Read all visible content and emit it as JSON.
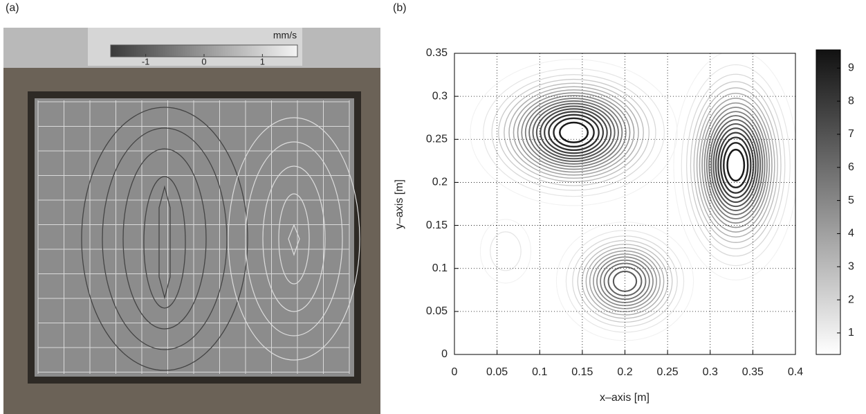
{
  "chart_data": [
    {
      "type": "image",
      "label": "(a)",
      "colorbar": {
        "unit": "mm/s",
        "lim": [
          -1.6,
          1.6
        ],
        "ticks": [
          -1,
          0,
          1
        ]
      }
    },
    {
      "type": "contour",
      "label": "(b)",
      "x_label": "x–axis [m]",
      "y_label": "y–axis [m]",
      "xlim": [
        0,
        0.4
      ],
      "xticks": [
        0,
        0.05,
        0.1,
        0.15,
        0.2,
        0.25,
        0.3,
        0.35,
        0.4
      ],
      "ylim": [
        0,
        0.35
      ],
      "yticks": [
        0,
        0.05,
        0.1,
        0.15,
        0.2,
        0.25,
        0.3,
        0.35
      ],
      "grid": true,
      "levels": [
        0.5,
        1,
        1.5,
        2,
        2.5,
        3,
        3.5,
        4,
        4.5,
        5,
        5.5,
        6,
        6.5,
        7,
        7.5,
        8,
        8.5,
        9
      ],
      "peaks": [
        {
          "x": 0.14,
          "y": 0.258,
          "value": 9.5,
          "sx": 0.05,
          "sy": 0.035
        },
        {
          "x": 0.33,
          "y": 0.22,
          "value": 9.5,
          "sx": 0.03,
          "sy": 0.055
        },
        {
          "x": 0.2,
          "y": 0.085,
          "value": 7,
          "sx": 0.035,
          "sy": 0.03
        },
        {
          "x": 0.06,
          "y": 0.12,
          "value": 1.5,
          "sx": 0.02,
          "sy": 0.025
        }
      ],
      "colorbar": {
        "lim": [
          0.35,
          9.55
        ],
        "ticks": [
          1,
          2,
          3,
          4,
          5,
          6,
          7,
          8,
          9
        ]
      }
    }
  ]
}
